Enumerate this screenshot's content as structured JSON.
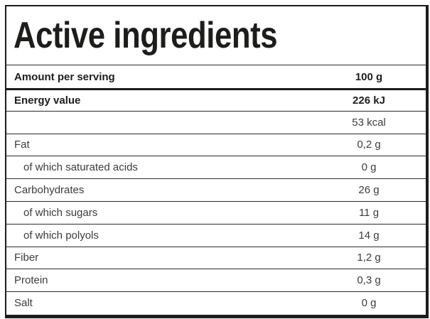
{
  "title": "Active ingredients",
  "table": {
    "header_row": {
      "label": "Amount per serving",
      "value": "100 g"
    },
    "rows": [
      {
        "label": "Energy value",
        "value": "226 kJ",
        "bold": true,
        "indent": false,
        "thick_divider": true
      },
      {
        "label": "",
        "value": "53 kcal",
        "bold": false,
        "indent": false,
        "thick_divider": false
      },
      {
        "label": "Fat",
        "value": "0,2 g",
        "bold": false,
        "indent": false,
        "thick_divider": false
      },
      {
        "label": "of which saturated acids",
        "value": "0 g",
        "bold": false,
        "indent": true,
        "thick_divider": false
      },
      {
        "label": "Carbohydrates",
        "value": "26 g",
        "bold": false,
        "indent": false,
        "thick_divider": false
      },
      {
        "label": "of which sugars",
        "value": "11 g",
        "bold": false,
        "indent": true,
        "thick_divider": false
      },
      {
        "label": "of which polyols",
        "value": "14 g",
        "bold": false,
        "indent": true,
        "thick_divider": false
      },
      {
        "label": "Fiber",
        "value": "1,2 g",
        "bold": false,
        "indent": false,
        "thick_divider": false
      },
      {
        "label": "Protein",
        "value": "0,3 g",
        "bold": false,
        "indent": false,
        "thick_divider": false
      },
      {
        "label": "Salt",
        "value": "0 g",
        "bold": false,
        "indent": false,
        "thick_divider": false
      }
    ]
  },
  "colors": {
    "border": "#1c1c1b",
    "divider": "#2b2b2b",
    "text-bold": "#1d1d1b",
    "text-regular": "#3c3c3b"
  }
}
